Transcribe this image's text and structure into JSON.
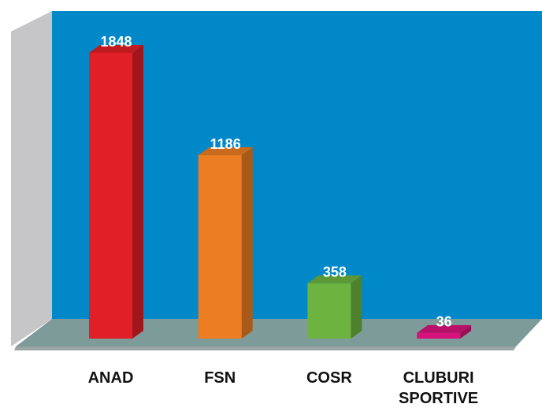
{
  "chart_data": {
    "type": "bar3d",
    "categories": [
      "ANAD",
      "FSN",
      "COSR",
      "CLUBURI SPORTIVE"
    ],
    "values": [
      1848,
      1186,
      358,
      36
    ],
    "colors": [
      "#e01f26",
      "#ec7d22",
      "#6db33f",
      "#d6137a"
    ]
  }
}
